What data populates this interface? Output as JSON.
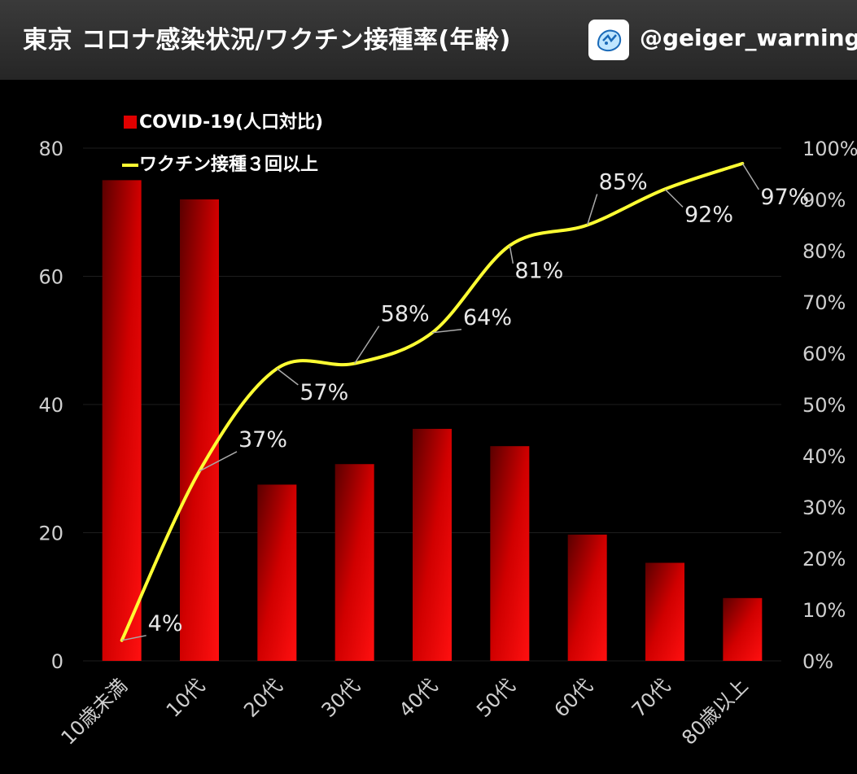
{
  "header": {
    "title": "東京 コロナ感染状況/ワクチン接種率(年齢)",
    "handle": "@geiger_warning",
    "logo_icon": "twitter-bird-sticker-icon"
  },
  "chart_data": {
    "type": "bar+line",
    "categories": [
      "10歳未満",
      "10代",
      "20代",
      "30代",
      "40代",
      "50代",
      "60代",
      "70代",
      "80歳以上"
    ],
    "series": [
      {
        "name": "COVID-19(人口対比)",
        "type": "bar",
        "axis": "left",
        "color": "#e00000",
        "values": [
          75,
          72,
          27.5,
          30.7,
          36.2,
          33.5,
          19.7,
          15.3,
          9.8
        ]
      },
      {
        "name": "ワクチン接種３回以上",
        "type": "line",
        "axis": "right",
        "color": "#ffff33",
        "values": [
          4,
          37,
          57,
          58,
          64,
          81,
          85,
          92,
          97
        ],
        "labels": [
          "4%",
          "37%",
          "57%",
          "58%",
          "64%",
          "81%",
          "85%",
          "92%",
          "97%"
        ]
      }
    ],
    "left_axis": {
      "ylim": [
        0,
        80
      ],
      "ticks": [
        "0",
        "20",
        "40",
        "60",
        "80"
      ]
    },
    "right_axis": {
      "ylim": [
        0,
        100
      ],
      "ticks": [
        "0%",
        "10%",
        "20%",
        "30%",
        "40%",
        "50%",
        "60%",
        "70%",
        "80%",
        "90%",
        "100%"
      ]
    },
    "grid": true,
    "legend_position": "top-left"
  }
}
